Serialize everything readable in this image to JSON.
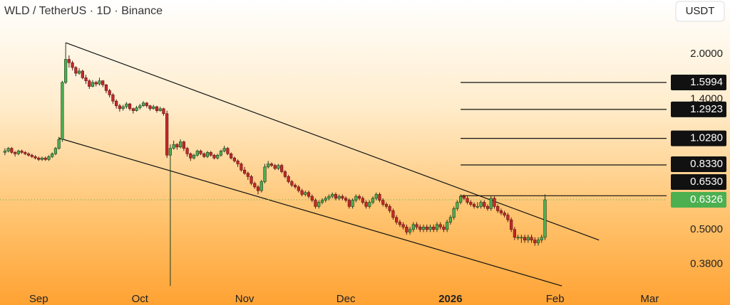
{
  "chart_data": {
    "type": "candlestick",
    "title": "WLD / TetherUS · 1D · Binance",
    "currency_button": "USDT",
    "log_scale": true,
    "ylim": [
      0.315,
      3.07
    ],
    "yticks": [
      {
        "value": 2,
        "label": "2.0000"
      },
      {
        "value": 1.4,
        "label": "1.4000"
      },
      {
        "value": 0.5,
        "label": "0.5000"
      },
      {
        "value": 0.38,
        "label": "0.3800"
      }
    ],
    "up_color": "#4caf50",
    "down_color": "#c62828",
    "categories": [
      null,
      null,
      null,
      null,
      null,
      null,
      null,
      null,
      null,
      null,
      "Sep",
      null,
      null,
      null,
      null,
      null,
      null,
      null,
      null,
      null,
      null,
      null,
      null,
      null,
      null,
      null,
      null,
      null,
      null,
      null,
      null,
      null,
      null,
      null,
      null,
      null,
      null,
      null,
      null,
      null,
      "Oct",
      null,
      null,
      null,
      null,
      null,
      null,
      null,
      null,
      null,
      null,
      null,
      null,
      null,
      null,
      null,
      null,
      null,
      null,
      null,
      null,
      null,
      null,
      null,
      null,
      null,
      null,
      null,
      null,
      null,
      null,
      "Nov",
      null,
      null,
      null,
      null,
      null,
      null,
      null,
      null,
      null,
      null,
      null,
      null,
      null,
      null,
      null,
      null,
      null,
      null,
      null,
      null,
      null,
      null,
      null,
      null,
      null,
      null,
      null,
      null,
      null,
      "Dec",
      null,
      null,
      null,
      null,
      null,
      null,
      null,
      null,
      null,
      null,
      null,
      null,
      null,
      null,
      null,
      null,
      null,
      null,
      null,
      null,
      null,
      null,
      null,
      null,
      null,
      null,
      null,
      null,
      null,
      null,
      "2026",
      null,
      null,
      null,
      null,
      null,
      null,
      null,
      null,
      null,
      null,
      null,
      null,
      null,
      null,
      null,
      null,
      null,
      null,
      null,
      null,
      null,
      null,
      null,
      null,
      null,
      null,
      null,
      null,
      null,
      null,
      "Feb",
      null,
      null,
      null,
      null,
      null,
      null,
      null,
      null,
      null,
      null,
      null,
      null,
      null,
      null,
      null,
      null,
      null,
      null,
      null,
      null,
      null,
      null,
      null,
      null,
      null,
      null,
      null,
      "Mar"
    ],
    "candles": [
      [
        0.92,
        0.95,
        0.9,
        0.93
      ],
      [
        0.93,
        0.96,
        0.92,
        0.95
      ],
      [
        0.95,
        0.96,
        0.91,
        0.92
      ],
      [
        0.92,
        0.93,
        0.89,
        0.91
      ],
      [
        0.91,
        0.94,
        0.9,
        0.93
      ],
      [
        0.93,
        0.94,
        0.91,
        0.92
      ],
      [
        0.92,
        0.93,
        0.9,
        0.91
      ],
      [
        0.91,
        0.92,
        0.89,
        0.9
      ],
      [
        0.9,
        0.91,
        0.88,
        0.89
      ],
      [
        0.89,
        0.9,
        0.87,
        0.88
      ],
      [
        0.88,
        0.89,
        0.86,
        0.87
      ],
      [
        0.87,
        0.89,
        0.86,
        0.88
      ],
      [
        0.88,
        0.89,
        0.86,
        0.87
      ],
      [
        0.87,
        0.9,
        0.86,
        0.89
      ],
      [
        0.89,
        0.92,
        0.88,
        0.91
      ],
      [
        0.91,
        0.96,
        0.9,
        0.95
      ],
      [
        0.95,
        1.04,
        0.94,
        1.02
      ],
      [
        1.02,
        1.62,
        1.0,
        1.6
      ],
      [
        1.6,
        2.19,
        1.58,
        1.92
      ],
      [
        1.92,
        1.98,
        1.8,
        1.87
      ],
      [
        1.87,
        1.9,
        1.76,
        1.8
      ],
      [
        1.8,
        1.82,
        1.68,
        1.72
      ],
      [
        1.72,
        1.79,
        1.7,
        1.75
      ],
      [
        1.75,
        1.77,
        1.64,
        1.66
      ],
      [
        1.66,
        1.7,
        1.58,
        1.62
      ],
      [
        1.62,
        1.64,
        1.52,
        1.55
      ],
      [
        1.55,
        1.63,
        1.54,
        1.6
      ],
      [
        1.6,
        1.62,
        1.55,
        1.58
      ],
      [
        1.58,
        1.66,
        1.56,
        1.62
      ],
      [
        1.62,
        1.63,
        1.54,
        1.57
      ],
      [
        1.57,
        1.58,
        1.47,
        1.5
      ],
      [
        1.5,
        1.52,
        1.42,
        1.45
      ],
      [
        1.45,
        1.47,
        1.35,
        1.38
      ],
      [
        1.38,
        1.4,
        1.3,
        1.33
      ],
      [
        1.33,
        1.35,
        1.27,
        1.3
      ],
      [
        1.3,
        1.34,
        1.28,
        1.32
      ],
      [
        1.32,
        1.37,
        1.3,
        1.35
      ],
      [
        1.35,
        1.36,
        1.28,
        1.3
      ],
      [
        1.3,
        1.31,
        1.25,
        1.28
      ],
      [
        1.28,
        1.33,
        1.27,
        1.31
      ],
      [
        1.31,
        1.35,
        1.29,
        1.33
      ],
      [
        1.33,
        1.38,
        1.32,
        1.36
      ],
      [
        1.36,
        1.37,
        1.31,
        1.33
      ],
      [
        1.33,
        1.34,
        1.28,
        1.3
      ],
      [
        1.3,
        1.34,
        1.29,
        1.32
      ],
      [
        1.32,
        1.33,
        1.26,
        1.28
      ],
      [
        1.28,
        1.32,
        1.27,
        1.3
      ],
      [
        1.3,
        1.31,
        1.23,
        1.25
      ],
      [
        1.25,
        1.28,
        0.88,
        0.9
      ],
      [
        0.9,
        0.98,
        0.32,
        0.95
      ],
      [
        0.95,
        1.01,
        0.94,
        0.98
      ],
      [
        0.98,
        0.99,
        0.94,
        0.96
      ],
      [
        0.96,
        1.02,
        0.95,
        1.0
      ],
      [
        1.0,
        1.01,
        0.93,
        0.95
      ],
      [
        0.95,
        0.96,
        0.89,
        0.91
      ],
      [
        0.91,
        0.92,
        0.86,
        0.88
      ],
      [
        0.88,
        0.91,
        0.87,
        0.9
      ],
      [
        0.9,
        0.94,
        0.89,
        0.93
      ],
      [
        0.93,
        0.94,
        0.9,
        0.91
      ],
      [
        0.91,
        0.92,
        0.88,
        0.89
      ],
      [
        0.89,
        0.93,
        0.88,
        0.92
      ],
      [
        0.92,
        0.93,
        0.89,
        0.9
      ],
      [
        0.9,
        0.91,
        0.87,
        0.88
      ],
      [
        0.88,
        0.91,
        0.87,
        0.9
      ],
      [
        0.9,
        0.94,
        0.89,
        0.93
      ],
      [
        0.93,
        0.97,
        0.92,
        0.95
      ],
      [
        0.95,
        0.96,
        0.9,
        0.91
      ],
      [
        0.91,
        0.92,
        0.87,
        0.88
      ],
      [
        0.88,
        0.89,
        0.85,
        0.86
      ],
      [
        0.86,
        0.87,
        0.82,
        0.84
      ],
      [
        0.84,
        0.85,
        0.79,
        0.8
      ],
      [
        0.8,
        0.82,
        0.77,
        0.78
      ],
      [
        0.78,
        0.79,
        0.74,
        0.76
      ],
      [
        0.76,
        0.77,
        0.71,
        0.72
      ],
      [
        0.72,
        0.73,
        0.69,
        0.7
      ],
      [
        0.7,
        0.71,
        0.66,
        0.68
      ],
      [
        0.68,
        0.74,
        0.67,
        0.73
      ],
      [
        0.73,
        0.84,
        0.72,
        0.82
      ],
      [
        0.82,
        0.86,
        0.81,
        0.84
      ],
      [
        0.84,
        0.85,
        0.82,
        0.83
      ],
      [
        0.83,
        0.84,
        0.8,
        0.81
      ],
      [
        0.81,
        0.84,
        0.8,
        0.83
      ],
      [
        0.83,
        0.84,
        0.78,
        0.79
      ],
      [
        0.79,
        0.8,
        0.75,
        0.76
      ],
      [
        0.76,
        0.77,
        0.72,
        0.73
      ],
      [
        0.73,
        0.74,
        0.7,
        0.71
      ],
      [
        0.71,
        0.72,
        0.69,
        0.7
      ],
      [
        0.7,
        0.71,
        0.67,
        0.68
      ],
      [
        0.68,
        0.69,
        0.65,
        0.66
      ],
      [
        0.66,
        0.68,
        0.65,
        0.67
      ],
      [
        0.67,
        0.68,
        0.64,
        0.65
      ],
      [
        0.65,
        0.66,
        0.62,
        0.63
      ],
      [
        0.63,
        0.64,
        0.59,
        0.6
      ],
      [
        0.6,
        0.63,
        0.59,
        0.62
      ],
      [
        0.62,
        0.64,
        0.61,
        0.63
      ],
      [
        0.63,
        0.65,
        0.62,
        0.64
      ],
      [
        0.64,
        0.66,
        0.63,
        0.65
      ],
      [
        0.65,
        0.67,
        0.64,
        0.66
      ],
      [
        0.66,
        0.67,
        0.63,
        0.64
      ],
      [
        0.64,
        0.66,
        0.63,
        0.65
      ],
      [
        0.65,
        0.66,
        0.63,
        0.64
      ],
      [
        0.64,
        0.65,
        0.62,
        0.63
      ],
      [
        0.63,
        0.64,
        0.59,
        0.6
      ],
      [
        0.6,
        0.64,
        0.59,
        0.63
      ],
      [
        0.63,
        0.66,
        0.62,
        0.65
      ],
      [
        0.65,
        0.66,
        0.63,
        0.64
      ],
      [
        0.64,
        0.65,
        0.61,
        0.62
      ],
      [
        0.62,
        0.63,
        0.59,
        0.6
      ],
      [
        0.6,
        0.63,
        0.59,
        0.62
      ],
      [
        0.62,
        0.65,
        0.61,
        0.64
      ],
      [
        0.64,
        0.67,
        0.63,
        0.66
      ],
      [
        0.66,
        0.67,
        0.62,
        0.63
      ],
      [
        0.63,
        0.64,
        0.6,
        0.61
      ],
      [
        0.61,
        0.62,
        0.59,
        0.6
      ],
      [
        0.6,
        0.61,
        0.57,
        0.58
      ],
      [
        0.58,
        0.59,
        0.54,
        0.55
      ],
      [
        0.55,
        0.56,
        0.52,
        0.53
      ],
      [
        0.53,
        0.54,
        0.51,
        0.52
      ],
      [
        0.52,
        0.53,
        0.5,
        0.51
      ],
      [
        0.51,
        0.52,
        0.48,
        0.49
      ],
      [
        0.49,
        0.51,
        0.48,
        0.5
      ],
      [
        0.5,
        0.53,
        0.49,
        0.52
      ],
      [
        0.52,
        0.53,
        0.5,
        0.51
      ],
      [
        0.51,
        0.52,
        0.49,
        0.5
      ],
      [
        0.5,
        0.52,
        0.49,
        0.51
      ],
      [
        0.51,
        0.52,
        0.49,
        0.5
      ],
      [
        0.5,
        0.52,
        0.49,
        0.51
      ],
      [
        0.51,
        0.52,
        0.49,
        0.5
      ],
      [
        0.5,
        0.53,
        0.49,
        0.52
      ],
      [
        0.52,
        0.53,
        0.5,
        0.51
      ],
      [
        0.51,
        0.52,
        0.49,
        0.5
      ],
      [
        0.5,
        0.54,
        0.49,
        0.53
      ],
      [
        0.53,
        0.56,
        0.52,
        0.55
      ],
      [
        0.55,
        0.6,
        0.54,
        0.59
      ],
      [
        0.59,
        0.63,
        0.58,
        0.62
      ],
      [
        0.62,
        0.66,
        0.61,
        0.65
      ],
      [
        0.65,
        0.66,
        0.63,
        0.64
      ],
      [
        0.64,
        0.65,
        0.61,
        0.62
      ],
      [
        0.62,
        0.63,
        0.6,
        0.61
      ],
      [
        0.61,
        0.62,
        0.59,
        0.6
      ],
      [
        0.6,
        0.62,
        0.59,
        0.6
      ],
      [
        0.6,
        0.63,
        0.59,
        0.62
      ],
      [
        0.62,
        0.63,
        0.59,
        0.6
      ],
      [
        0.6,
        0.61,
        0.58,
        0.59
      ],
      [
        0.59,
        0.65,
        0.58,
        0.64
      ],
      [
        0.64,
        0.65,
        0.59,
        0.6
      ],
      [
        0.6,
        0.61,
        0.57,
        0.58
      ],
      [
        0.58,
        0.59,
        0.56,
        0.57
      ],
      [
        0.57,
        0.58,
        0.55,
        0.56
      ],
      [
        0.56,
        0.57,
        0.53,
        0.54
      ],
      [
        0.54,
        0.55,
        0.49,
        0.5
      ],
      [
        0.5,
        0.51,
        0.46,
        0.47
      ],
      [
        0.47,
        0.48,
        0.46,
        0.47
      ],
      [
        0.47,
        0.48,
        0.45,
        0.47
      ],
      [
        0.47,
        0.48,
        0.45,
        0.46
      ],
      [
        0.46,
        0.48,
        0.45,
        0.47
      ],
      [
        0.47,
        0.48,
        0.45,
        0.46
      ],
      [
        0.46,
        0.47,
        0.44,
        0.45
      ],
      [
        0.45,
        0.47,
        0.44,
        0.46
      ],
      [
        0.46,
        0.48,
        0.45,
        0.47
      ],
      [
        0.47,
        0.66,
        0.46,
        0.6326
      ],
      null,
      null,
      null,
      null,
      null,
      null,
      null,
      null,
      null,
      null,
      null,
      null,
      null,
      null,
      null,
      null,
      null,
      null,
      null,
      null,
      null,
      null,
      null,
      null,
      null,
      null,
      null,
      null,
      null,
      null,
      null
    ],
    "trendlines": [
      {
        "from": [
          18,
          2.19
        ],
        "to": [
          176,
          0.46
        ]
      },
      {
        "from": [
          16,
          1.03
        ],
        "to": [
          165,
          0.32
        ]
      }
    ],
    "levels_from": 135,
    "levels": [
      {
        "value": 1.5994,
        "label": "1.5994"
      },
      {
        "value": 1.2923,
        "label": "1.2923"
      },
      {
        "value": 1.028,
        "label": "1.0280"
      },
      {
        "value": 0.833,
        "label": "0.8330"
      },
      {
        "value": 0.653,
        "label": "0.6530"
      }
    ],
    "last_price": {
      "value": 0.6326,
      "label": "0.6326"
    }
  }
}
